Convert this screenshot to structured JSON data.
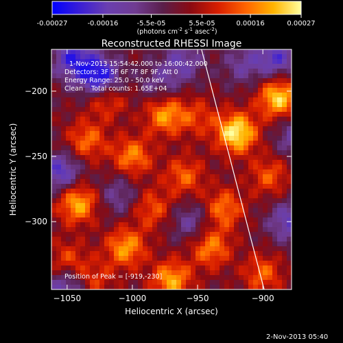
{
  "chart_data": {
    "type": "heatmap",
    "title": "Reconstructed RHESSI Image",
    "colorbar": {
      "ticks": [
        "-0.00027",
        "-0.00016",
        "-5.5e-05",
        "5.5e-05",
        "0.00016",
        "0.00027"
      ],
      "tick_values": [
        -0.00027,
        -0.00016,
        -5.5e-05,
        5.5e-05,
        0.00016,
        0.00027
      ],
      "range": [
        -0.00027,
        0.00027
      ],
      "units_label": "(photons cm",
      "units_sup1": "-2",
      "units_mid": " s",
      "units_sup2": "-1",
      "units_mid2": " asec",
      "units_sup3": "-2",
      "units_close": ")",
      "colors": [
        "#0000ff",
        "#3a1ed6",
        "#6a3fb0",
        "#703c92",
        "#5a1e4a",
        "#8a0a12",
        "#d81e00",
        "#ff6400",
        "#ffb400",
        "#ffffa0"
      ]
    },
    "xlabel": "Heliocentric X (arcsec)",
    "ylabel": "Heliocentric Y (arcsec)",
    "xlim": [
      -1062,
      -878
    ],
    "ylim": [
      -352,
      -168
    ],
    "xticks": [
      -1050,
      -1000,
      -950,
      -900
    ],
    "yticks": [
      -200,
      -250,
      -300
    ],
    "limb_line": {
      "x": [
        -947,
        -899
      ],
      "y": [
        -168,
        -352
      ]
    },
    "peak": {
      "x": -919,
      "y": -230
    },
    "hotspots": [
      {
        "x": -920,
        "y": -232,
        "value": 0.00027
      },
      {
        "x": -888,
        "y": -205,
        "value": 0.00024
      },
      {
        "x": -1042,
        "y": -286,
        "value": 0.00021
      },
      {
        "x": -975,
        "y": -218,
        "value": 0.00019
      },
      {
        "x": -1000,
        "y": -250,
        "value": 0.00017
      },
      {
        "x": -1020,
        "y": -205,
        "value": 0.00015
      },
      {
        "x": -1005,
        "y": -320,
        "value": 0.00019
      },
      {
        "x": -970,
        "y": -345,
        "value": 0.0002
      },
      {
        "x": -940,
        "y": -320,
        "value": 0.00017
      },
      {
        "x": -930,
        "y": -290,
        "value": 0.00016
      },
      {
        "x": -960,
        "y": -265,
        "value": 0.00014
      },
      {
        "x": -1035,
        "y": -238,
        "value": 0.00015
      },
      {
        "x": -1050,
        "y": -330,
        "value": 0.00012
      },
      {
        "x": -900,
        "y": -340,
        "value": 0.00014
      },
      {
        "x": -895,
        "y": -265,
        "value": 0.00013
      },
      {
        "x": -985,
        "y": -290,
        "value": 0.00013
      },
      {
        "x": -950,
        "y": -220,
        "value": 0.0001
      },
      {
        "x": -1030,
        "y": -345,
        "value": 0.00011
      }
    ],
    "coldspots": [
      {
        "x": -1025,
        "y": -190,
        "value": -0.00027
      },
      {
        "x": -1045,
        "y": -175,
        "value": -0.0002
      },
      {
        "x": -1055,
        "y": -262,
        "value": -0.00018
      },
      {
        "x": -890,
        "y": -175,
        "value": -0.00017
      },
      {
        "x": -962,
        "y": -178,
        "value": -0.00013
      },
      {
        "x": -1050,
        "y": -350,
        "value": -0.00016
      },
      {
        "x": -880,
        "y": -300,
        "value": -0.00015
      },
      {
        "x": -955,
        "y": -300,
        "value": -0.00011
      },
      {
        "x": -1010,
        "y": -280,
        "value": -0.0001
      },
      {
        "x": -875,
        "y": -235,
        "value": -0.00012
      },
      {
        "x": -980,
        "y": -195,
        "value": -9e-05
      },
      {
        "x": -915,
        "y": -180,
        "value": -0.0001
      }
    ]
  },
  "annotations": {
    "time_range": "1-Nov-2013 15:54:42.000 to 16:00:42.000",
    "detectors": "Detectors: 3F 5F 6F 7F 8F 9F, Att 0",
    "energy": "Energy Range: 25.0 - 50.0 keV",
    "clean": "Clean    Total counts: 1.65E+04",
    "peak_text": "Position of Peak = [-919,-230]"
  },
  "footer": {
    "date": "2-Nov-2013 05:40"
  }
}
